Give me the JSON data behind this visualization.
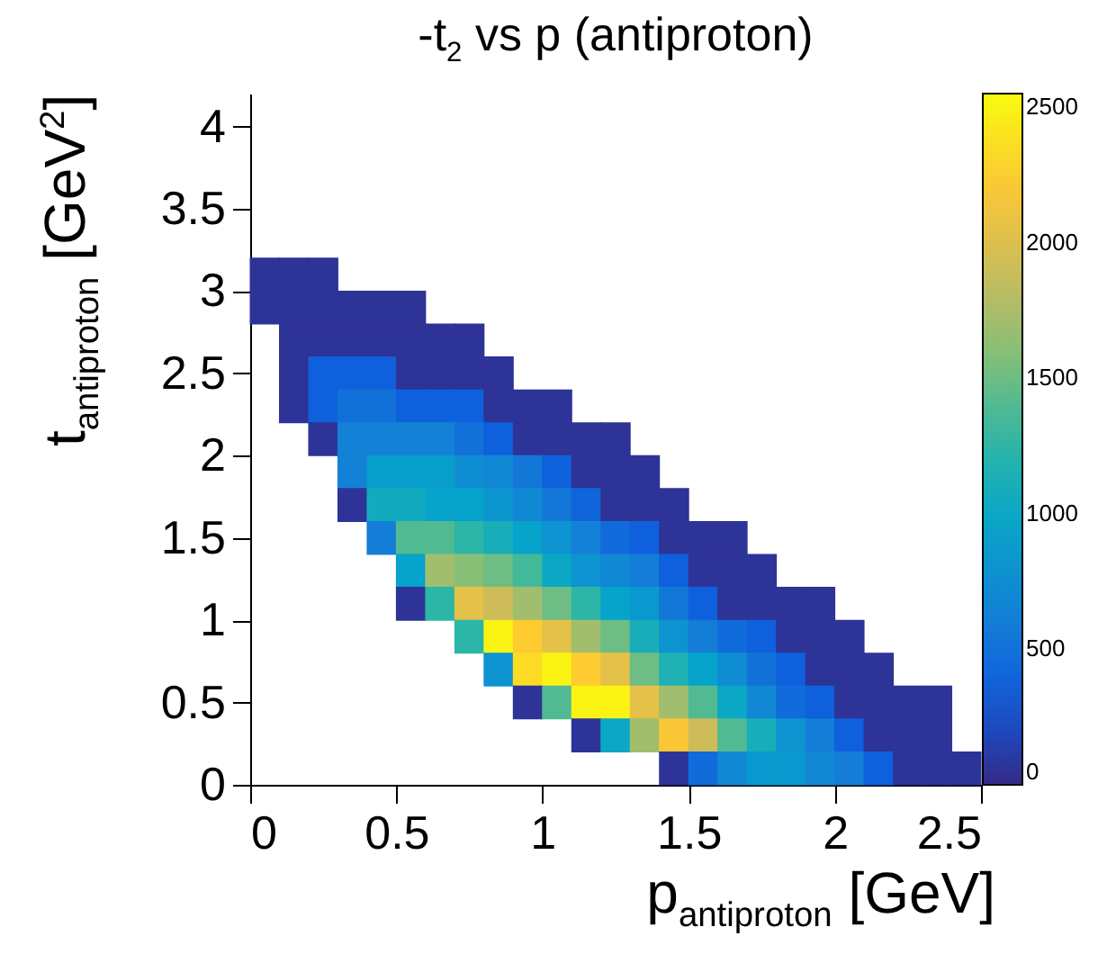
{
  "chart_data": {
    "type": "scatter",
    "marker": "square",
    "title": "-t$_{2}$ vs p (antiproton)",
    "xlabel": "p$_{antiproton}$ [GeV]",
    "ylabel": "t$_{antiproton}$ [GeV$^{2}$]",
    "xlim": [
      0,
      2.5
    ],
    "ylim": [
      0,
      4.2
    ],
    "xticks": [
      0,
      0.5,
      1,
      1.5,
      2,
      2.5
    ],
    "yticks": [
      0,
      0.5,
      1,
      1.5,
      2,
      2.5,
      3,
      3.5,
      4
    ],
    "clim": [
      0,
      2550
    ],
    "cticks": [
      0,
      500,
      1000,
      1500,
      2000,
      2500
    ],
    "x": [
      0.05,
      0.15,
      0.25,
      0.05,
      0.15,
      0.25,
      0.35,
      0.45,
      0.55,
      0.15,
      0.25,
      0.35,
      0.45,
      0.55,
      0.65,
      0.75,
      0.15,
      0.25,
      0.35,
      0.45,
      0.55,
      0.65,
      0.75,
      0.85,
      0.15,
      0.25,
      0.35,
      0.45,
      0.55,
      0.65,
      0.75,
      0.85,
      0.95,
      1.05,
      0.25,
      0.35,
      0.45,
      0.55,
      0.65,
      0.75,
      0.85,
      0.95,
      1.05,
      1.15,
      1.25,
      0.35,
      0.45,
      0.55,
      0.65,
      0.75,
      0.85,
      0.95,
      1.05,
      1.15,
      1.25,
      1.35,
      0.35,
      0.45,
      0.55,
      0.65,
      0.75,
      0.85,
      0.95,
      1.05,
      1.15,
      1.25,
      1.35,
      1.45,
      0.45,
      0.55,
      0.65,
      0.75,
      0.85,
      0.95,
      1.05,
      1.15,
      1.25,
      1.35,
      1.45,
      1.55,
      1.65,
      0.55,
      0.65,
      0.75,
      0.85,
      0.95,
      1.05,
      1.15,
      1.25,
      1.35,
      1.45,
      1.55,
      1.65,
      1.75,
      0.55,
      0.65,
      0.75,
      0.85,
      0.95,
      1.05,
      1.15,
      1.25,
      1.35,
      1.45,
      1.55,
      1.65,
      1.75,
      1.85,
      1.95,
      0.75,
      0.85,
      0.95,
      1.05,
      1.15,
      1.25,
      1.35,
      1.45,
      1.55,
      1.65,
      1.75,
      1.85,
      1.95,
      2.05,
      0.85,
      0.95,
      1.05,
      1.15,
      1.25,
      1.35,
      1.45,
      1.55,
      1.65,
      1.75,
      1.85,
      1.95,
      2.05,
      2.15,
      0.95,
      1.05,
      1.15,
      1.25,
      1.35,
      1.45,
      1.55,
      1.65,
      1.75,
      1.85,
      1.95,
      2.05,
      2.15,
      2.25,
      2.35,
      1.15,
      1.25,
      1.35,
      1.45,
      1.55,
      1.65,
      1.75,
      1.85,
      1.95,
      2.05,
      2.15,
      2.25,
      2.35,
      1.45,
      1.55,
      1.65,
      1.75,
      1.85,
      1.95,
      2.05,
      2.15,
      2.25,
      2.35,
      2.45
    ],
    "values": [
      3.1,
      3.1,
      3.1,
      2.9,
      2.9,
      2.9,
      2.9,
      2.9,
      2.9,
      2.7,
      2.7,
      2.7,
      2.7,
      2.7,
      2.7,
      2.7,
      2.5,
      2.5,
      2.5,
      2.5,
      2.5,
      2.5,
      2.5,
      2.5,
      2.3,
      2.3,
      2.3,
      2.3,
      2.3,
      2.3,
      2.3,
      2.3,
      2.3,
      2.3,
      2.1,
      2.1,
      2.1,
      2.1,
      2.1,
      2.1,
      2.1,
      2.1,
      2.1,
      2.1,
      2.1,
      1.9,
      1.9,
      1.9,
      1.9,
      1.9,
      1.9,
      1.9,
      1.9,
      1.9,
      1.9,
      1.9,
      1.7,
      1.7,
      1.7,
      1.7,
      1.7,
      1.7,
      1.7,
      1.7,
      1.7,
      1.7,
      1.7,
      1.7,
      1.5,
      1.5,
      1.5,
      1.5,
      1.5,
      1.5,
      1.5,
      1.5,
      1.5,
      1.5,
      1.5,
      1.5,
      1.5,
      1.3,
      1.3,
      1.3,
      1.3,
      1.3,
      1.3,
      1.3,
      1.3,
      1.3,
      1.3,
      1.3,
      1.3,
      1.3,
      1.1,
      1.1,
      1.1,
      1.1,
      1.1,
      1.1,
      1.1,
      1.1,
      1.1,
      1.1,
      1.1,
      1.1,
      1.1,
      1.1,
      1.1,
      0.9,
      0.9,
      0.9,
      0.9,
      0.9,
      0.9,
      0.9,
      0.9,
      0.9,
      0.9,
      0.9,
      0.9,
      0.9,
      0.9,
      0.7,
      0.7,
      0.7,
      0.7,
      0.7,
      0.7,
      0.7,
      0.7,
      0.7,
      0.7,
      0.7,
      0.7,
      0.7,
      0.7,
      0.5,
      0.5,
      0.5,
      0.5,
      0.5,
      0.5,
      0.5,
      0.5,
      0.5,
      0.5,
      0.5,
      0.5,
      0.5,
      0.5,
      0.5,
      0.3,
      0.3,
      0.3,
      0.3,
      0.3,
      0.3,
      0.3,
      0.3,
      0.3,
      0.3,
      0.3,
      0.3,
      0.3,
      0.1,
      0.1,
      0.1,
      0.1,
      0.1,
      0.1,
      0.1,
      0.1,
      0.1,
      0.1,
      0.1
    ],
    "cvalues": [
      60,
      60,
      60,
      60,
      60,
      60,
      60,
      60,
      60,
      60,
      60,
      60,
      60,
      60,
      60,
      60,
      60,
      350,
      350,
      350,
      60,
      60,
      60,
      60,
      60,
      350,
      500,
      500,
      350,
      350,
      350,
      60,
      60,
      60,
      60,
      650,
      650,
      650,
      650,
      500,
      350,
      60,
      60,
      60,
      60,
      650,
      900,
      900,
      900,
      750,
      700,
      550,
      350,
      60,
      60,
      60,
      60,
      1050,
      1050,
      950,
      950,
      820,
      700,
      550,
      400,
      60,
      60,
      60,
      600,
      1400,
      1400,
      1250,
      1100,
      950,
      800,
      650,
      450,
      350,
      60,
      60,
      60,
      950,
      1700,
      1600,
      1500,
      1350,
      1000,
      800,
      700,
      600,
      350,
      60,
      60,
      60,
      60,
      1250,
      2050,
      1900,
      1700,
      1500,
      1250,
      950,
      850,
      550,
      350,
      60,
      60,
      60,
      60,
      1250,
      2500,
      2250,
      2050,
      1700,
      1500,
      1100,
      800,
      600,
      450,
      350,
      60,
      60,
      60,
      800,
      2350,
      2500,
      2250,
      2050,
      1500,
      1150,
      950,
      750,
      500,
      350,
      60,
      60,
      60,
      60,
      1400,
      2500,
      2500,
      2050,
      1700,
      1400,
      1000,
      700,
      450,
      350,
      60,
      60,
      60,
      60,
      60,
      1000,
      1700,
      2200,
      1900,
      1400,
      1100,
      800,
      600,
      350,
      60,
      60,
      60,
      60,
      450,
      700,
      850,
      850,
      700,
      600,
      350,
      60,
      60,
      60
    ]
  }
}
